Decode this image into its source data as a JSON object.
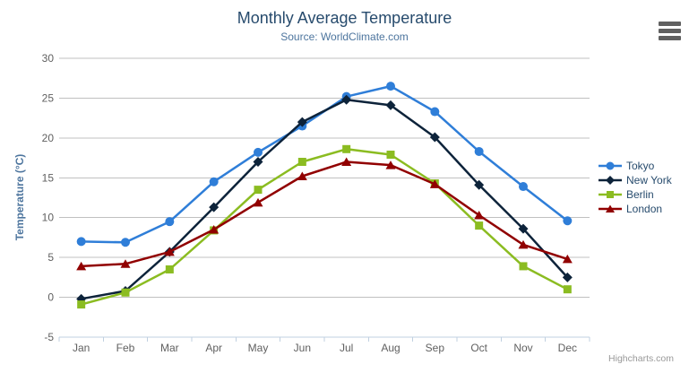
{
  "chart": {
    "credit": "Highcharts.com",
    "context_menu_icon": "hamburger-icon"
  },
  "colors": {
    "grid": "#C0C0C0",
    "axis_line": "#C0D0E0",
    "title": "#274b6d",
    "subtitle": "#4d759e",
    "y_axis_title": "#4d759e",
    "tick_label": "#606060",
    "legend_text": "#274b6d",
    "credit": "#999999",
    "burger": "#606060",
    "background": "#ffffff"
  },
  "chart_data": {
    "type": "line",
    "title": "Monthly Average Temperature",
    "subtitle": "Source: WorldClimate.com",
    "xlabel": "",
    "ylabel": "Temperature (°C)",
    "categories": [
      "Jan",
      "Feb",
      "Mar",
      "Apr",
      "May",
      "Jun",
      "Jul",
      "Aug",
      "Sep",
      "Oct",
      "Nov",
      "Dec"
    ],
    "ylim": [
      -5,
      30
    ],
    "ytick_step": 5,
    "grid": "horizontal-only",
    "legend_position": "right",
    "series": [
      {
        "name": "Tokyo",
        "color": "#2f7ed8",
        "marker": "circle",
        "values": [
          7.0,
          6.9,
          9.5,
          14.5,
          18.2,
          21.5,
          25.2,
          26.5,
          23.3,
          18.3,
          13.9,
          9.6
        ]
      },
      {
        "name": "New York",
        "color": "#0d233a",
        "marker": "diamond",
        "values": [
          -0.2,
          0.8,
          5.7,
          11.3,
          17.0,
          22.0,
          24.8,
          24.1,
          20.1,
          14.1,
          8.6,
          2.5
        ]
      },
      {
        "name": "Berlin",
        "color": "#8bbc21",
        "marker": "square",
        "values": [
          -0.9,
          0.6,
          3.5,
          8.4,
          13.5,
          17.0,
          18.6,
          17.9,
          14.3,
          9.0,
          3.9,
          1.0
        ]
      },
      {
        "name": "London",
        "color": "#910000",
        "marker": "triangle",
        "values": [
          3.9,
          4.2,
          5.7,
          8.5,
          11.9,
          15.2,
          17.0,
          16.6,
          14.2,
          10.3,
          6.6,
          4.8
        ]
      }
    ]
  }
}
